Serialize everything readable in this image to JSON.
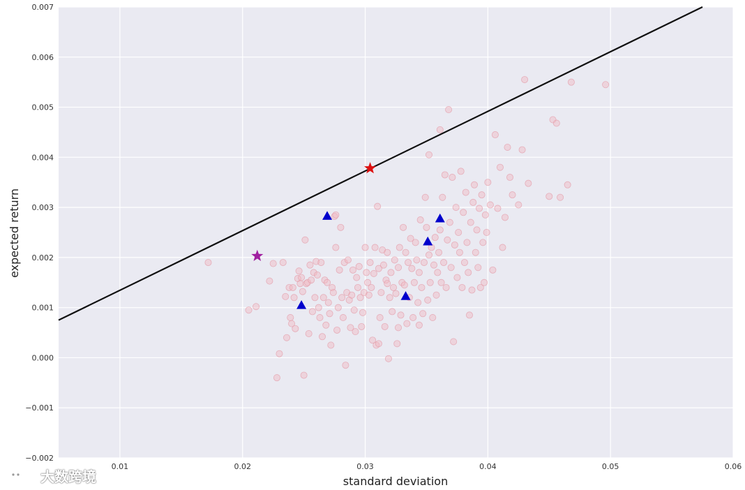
{
  "chart_data": {
    "type": "scatter",
    "title": "",
    "xlabel": "standard deviation",
    "ylabel": "expected return",
    "xlim": [
      0.005,
      0.06
    ],
    "ylim": [
      -0.002,
      0.007
    ],
    "xticks": [
      "0.01",
      "0.02",
      "0.03",
      "0.04",
      "0.05",
      "0.06"
    ],
    "yticks": [
      "−0.002",
      "−0.001",
      "0.000",
      "0.001",
      "0.002",
      "0.003",
      "0.004",
      "0.005",
      "0.006",
      "0.007"
    ],
    "grid": true,
    "colors": {
      "background": "#eaeaf2",
      "grid": "#ffffff",
      "portfolios": "#f2b8c0",
      "assets": "#0000cc",
      "min_variance": "#a020a0",
      "tangency": "#dd1111",
      "line": "#111111"
    },
    "random_portfolios": {
      "marker": "circle",
      "points": [
        [
          0.0172,
          0.0019
        ],
        [
          0.0205,
          0.00095
        ],
        [
          0.0211,
          0.00102
        ],
        [
          0.0222,
          0.00153
        ],
        [
          0.0225,
          0.00188
        ],
        [
          0.0228,
          -0.0004
        ],
        [
          0.023,
          8e-05
        ],
        [
          0.0233,
          0.0019
        ],
        [
          0.0235,
          0.00122
        ],
        [
          0.0236,
          0.0004
        ],
        [
          0.0238,
          0.0014
        ],
        [
          0.0239,
          0.0008
        ],
        [
          0.024,
          0.00068
        ],
        [
          0.0241,
          0.0014
        ],
        [
          0.0242,
          0.0012
        ],
        [
          0.0243,
          0.00058
        ],
        [
          0.0245,
          0.00158
        ],
        [
          0.0246,
          0.00173
        ],
        [
          0.0247,
          0.00148
        ],
        [
          0.0248,
          0.0016
        ],
        [
          0.0249,
          0.00132
        ],
        [
          0.025,
          -0.00035
        ],
        [
          0.0251,
          0.00235
        ],
        [
          0.0252,
          0.00148
        ],
        [
          0.0253,
          0.0015
        ],
        [
          0.0254,
          0.00048
        ],
        [
          0.0255,
          0.00185
        ],
        [
          0.0256,
          0.00155
        ],
        [
          0.0257,
          0.00092
        ],
        [
          0.0258,
          0.0017
        ],
        [
          0.0259,
          0.0012
        ],
        [
          0.026,
          0.00192
        ],
        [
          0.0261,
          0.00165
        ],
        [
          0.0262,
          0.001
        ],
        [
          0.0263,
          0.0008
        ],
        [
          0.0264,
          0.0019
        ],
        [
          0.0265,
          0.00042
        ],
        [
          0.0266,
          0.0012
        ],
        [
          0.0267,
          0.00155
        ],
        [
          0.0268,
          0.00065
        ],
        [
          0.0269,
          0.0015
        ],
        [
          0.027,
          0.0011
        ],
        [
          0.0271,
          0.00088
        ],
        [
          0.0272,
          0.00025
        ],
        [
          0.0273,
          0.0014
        ],
        [
          0.0274,
          0.0013
        ],
        [
          0.0275,
          0.00282
        ],
        [
          0.0276,
          0.0022
        ],
        [
          0.0277,
          0.00055
        ],
        [
          0.0278,
          0.001
        ],
        [
          0.0279,
          0.00175
        ],
        [
          0.028,
          0.0026
        ],
        [
          0.0281,
          0.0012
        ],
        [
          0.0282,
          0.0008
        ],
        [
          0.0283,
          0.0019
        ],
        [
          0.0284,
          -0.00015
        ],
        [
          0.0285,
          0.0013
        ],
        [
          0.0286,
          0.00195
        ],
        [
          0.0287,
          0.00115
        ],
        [
          0.0288,
          0.0006
        ],
        [
          0.0289,
          0.00125
        ],
        [
          0.029,
          0.00175
        ],
        [
          0.0291,
          0.00095
        ],
        [
          0.0292,
          0.00052
        ],
        [
          0.0293,
          0.0016
        ],
        [
          0.0294,
          0.0014
        ],
        [
          0.0295,
          0.00182
        ],
        [
          0.0296,
          0.0012
        ],
        [
          0.0297,
          0.00062
        ],
        [
          0.0298,
          0.0009
        ],
        [
          0.0299,
          0.0013
        ],
        [
          0.03,
          0.0022
        ],
        [
          0.0301,
          0.0017
        ],
        [
          0.0302,
          0.0015
        ],
        [
          0.0303,
          0.00125
        ],
        [
          0.0304,
          0.0019
        ],
        [
          0.0305,
          0.0014
        ],
        [
          0.0306,
          0.00035
        ],
        [
          0.0307,
          0.00168
        ],
        [
          0.0308,
          0.0022
        ],
        [
          0.0309,
          0.00025
        ],
        [
          0.031,
          0.00302
        ],
        [
          0.0311,
          0.00178
        ],
        [
          0.0312,
          0.0008
        ],
        [
          0.0313,
          0.0013
        ],
        [
          0.0314,
          0.00215
        ],
        [
          0.0315,
          0.00185
        ],
        [
          0.0316,
          0.00062
        ],
        [
          0.0317,
          0.00155
        ],
        [
          0.0318,
          0.0021
        ],
        [
          0.0319,
          -2e-05
        ],
        [
          0.032,
          0.0012
        ],
        [
          0.0321,
          0.0017
        ],
        [
          0.0322,
          0.00092
        ],
        [
          0.0323,
          0.0014
        ],
        [
          0.0324,
          0.00195
        ],
        [
          0.0325,
          0.00128
        ],
        [
          0.0326,
          0.00028
        ],
        [
          0.0327,
          0.0018
        ],
        [
          0.0328,
          0.0022
        ],
        [
          0.0329,
          0.00085
        ],
        [
          0.033,
          0.0015
        ],
        [
          0.0331,
          0.0026
        ],
        [
          0.0332,
          0.00145
        ],
        [
          0.0333,
          0.0021
        ],
        [
          0.0334,
          0.00068
        ],
        [
          0.0335,
          0.0019
        ],
        [
          0.0336,
          0.0012
        ],
        [
          0.0337,
          0.00238
        ],
        [
          0.0338,
          0.00178
        ],
        [
          0.0339,
          0.0008
        ],
        [
          0.034,
          0.0015
        ],
        [
          0.0341,
          0.0023
        ],
        [
          0.0342,
          0.00195
        ],
        [
          0.0343,
          0.0011
        ],
        [
          0.0344,
          0.0017
        ],
        [
          0.0345,
          0.00275
        ],
        [
          0.0346,
          0.0014
        ],
        [
          0.0347,
          0.00088
        ],
        [
          0.0348,
          0.0019
        ],
        [
          0.0349,
          0.0032
        ],
        [
          0.035,
          0.0026
        ],
        [
          0.0351,
          0.00115
        ],
        [
          0.0352,
          0.00205
        ],
        [
          0.0353,
          0.0015
        ],
        [
          0.0354,
          0.0022
        ],
        [
          0.0355,
          0.0008
        ],
        [
          0.0356,
          0.00185
        ],
        [
          0.0357,
          0.0024
        ],
        [
          0.0358,
          0.00125
        ],
        [
          0.0359,
          0.0017
        ],
        [
          0.036,
          0.0021
        ],
        [
          0.0361,
          0.00255
        ],
        [
          0.0362,
          0.0015
        ],
        [
          0.0363,
          0.0032
        ],
        [
          0.0364,
          0.0019
        ],
        [
          0.0365,
          0.00365
        ],
        [
          0.0366,
          0.0014
        ],
        [
          0.0367,
          0.00235
        ],
        [
          0.0368,
          0.00495
        ],
        [
          0.0369,
          0.0027
        ],
        [
          0.037,
          0.0018
        ],
        [
          0.0371,
          0.0036
        ],
        [
          0.0372,
          0.00032
        ],
        [
          0.0373,
          0.00225
        ],
        [
          0.0374,
          0.003
        ],
        [
          0.0375,
          0.0016
        ],
        [
          0.0376,
          0.0025
        ],
        [
          0.0377,
          0.0021
        ],
        [
          0.0378,
          0.00372
        ],
        [
          0.0379,
          0.0014
        ],
        [
          0.038,
          0.0029
        ],
        [
          0.0381,
          0.0019
        ],
        [
          0.0382,
          0.0033
        ],
        [
          0.0383,
          0.0023
        ],
        [
          0.0384,
          0.0017
        ],
        [
          0.0385,
          0.00085
        ],
        [
          0.0386,
          0.0027
        ],
        [
          0.0387,
          0.00135
        ],
        [
          0.0388,
          0.0031
        ],
        [
          0.0389,
          0.00345
        ],
        [
          0.039,
          0.0021
        ],
        [
          0.0391,
          0.00255
        ],
        [
          0.0392,
          0.0018
        ],
        [
          0.0393,
          0.00298
        ],
        [
          0.0394,
          0.0014
        ],
        [
          0.0395,
          0.00325
        ],
        [
          0.0396,
          0.0023
        ],
        [
          0.0397,
          0.0015
        ],
        [
          0.0398,
          0.00285
        ],
        [
          0.0399,
          0.0025
        ],
        [
          0.04,
          0.0035
        ],
        [
          0.0402,
          0.00305
        ],
        [
          0.0404,
          0.00175
        ],
        [
          0.0406,
          0.00445
        ],
        [
          0.0408,
          0.00298
        ],
        [
          0.041,
          0.0038
        ],
        [
          0.0412,
          0.0022
        ],
        [
          0.0414,
          0.0028
        ],
        [
          0.0416,
          0.0042
        ],
        [
          0.0418,
          0.0036
        ],
        [
          0.042,
          0.00325
        ],
        [
          0.0425,
          0.00305
        ],
        [
          0.0428,
          0.00415
        ],
        [
          0.043,
          0.00555
        ],
        [
          0.0433,
          0.00348
        ],
        [
          0.045,
          0.00322
        ],
        [
          0.0453,
          0.00475
        ],
        [
          0.0456,
          0.00468
        ],
        [
          0.0459,
          0.0032
        ],
        [
          0.0465,
          0.00345
        ],
        [
          0.0468,
          0.0055
        ],
        [
          0.0496,
          0.00545
        ],
        [
          0.0361,
          0.00455
        ],
        [
          0.0352,
          0.00405
        ],
        [
          0.0276,
          0.00285
        ],
        [
          0.0311,
          0.00028
        ],
        [
          0.0327,
          0.0006
        ],
        [
          0.0344,
          0.00065
        ],
        [
          0.0318,
          0.00148
        ]
      ]
    },
    "assets": {
      "marker": "triangle",
      "points": [
        [
          0.0248,
          0.00105
        ],
        [
          0.0269,
          0.00283
        ],
        [
          0.0333,
          0.00123
        ],
        [
          0.0351,
          0.00232
        ],
        [
          0.0361,
          0.00278
        ]
      ]
    },
    "min_variance_portfolio": {
      "marker": "star",
      "x": 0.0212,
      "y": 0.00203
    },
    "tangency_portfolio": {
      "marker": "star",
      "x": 0.0304,
      "y": 0.00378
    },
    "capital_market_line": {
      "x": [
        0.005,
        0.0575
      ],
      "y": [
        0.00075,
        0.007
      ]
    }
  },
  "watermark": {
    "text": "大数跨境"
  }
}
